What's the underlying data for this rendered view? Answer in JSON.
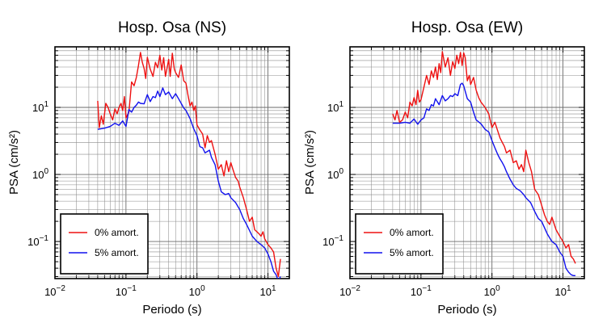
{
  "chart_data": [
    {
      "type": "line",
      "title": "Hosp. Osa (NS)",
      "xlabel": "Periodo (s)",
      "ylabel": "PSA (cm/s²)",
      "xscale": "log",
      "yscale": "log",
      "xlim": [
        0.01,
        20
      ],
      "ylim": [
        0.028,
        80
      ],
      "grid": true,
      "legend": "bottom-left",
      "x_ticks": [
        {
          "value": 0.01,
          "base": "10",
          "exp": "−2"
        },
        {
          "value": 0.1,
          "base": "10",
          "exp": "−1"
        },
        {
          "value": 1,
          "base": "10",
          "exp": "0"
        },
        {
          "value": 10,
          "base": "10",
          "exp": "1"
        }
      ],
      "y_ticks": [
        {
          "value": 0.1,
          "base": "10",
          "exp": "−1"
        },
        {
          "value": 1,
          "base": "10",
          "exp": "0"
        },
        {
          "value": 10,
          "base": "10",
          "exp": "1"
        }
      ],
      "series": [
        {
          "name": "0% amort.",
          "color": "#ee1111",
          "x": [
            0.04,
            0.042,
            0.045,
            0.048,
            0.052,
            0.056,
            0.06,
            0.065,
            0.07,
            0.075,
            0.08,
            0.085,
            0.09,
            0.095,
            0.1,
            0.11,
            0.12,
            0.13,
            0.14,
            0.15,
            0.16,
            0.17,
            0.18,
            0.19,
            0.2,
            0.22,
            0.24,
            0.26,
            0.28,
            0.3,
            0.32,
            0.34,
            0.36,
            0.38,
            0.4,
            0.42,
            0.45,
            0.48,
            0.5,
            0.55,
            0.6,
            0.65,
            0.7,
            0.75,
            0.8,
            0.85,
            0.9,
            0.95,
            1.0,
            1.1,
            1.2,
            1.3,
            1.4,
            1.5,
            1.6,
            1.8,
            2.0,
            2.2,
            2.4,
            2.6,
            2.8,
            3.0,
            3.2,
            3.5,
            3.8,
            4.0,
            4.5,
            5.0,
            5.5,
            6.0,
            6.5,
            7.0,
            7.5,
            8.0,
            8.5,
            9.0,
            10.0,
            11.0,
            12.0,
            13.0,
            14.0,
            15.0
          ],
          "y": [
            12.5,
            5.0,
            7.5,
            5.6,
            11.5,
            10.0,
            8.0,
            6.5,
            9.5,
            8.0,
            10.0,
            11.5,
            9.0,
            14.5,
            7.0,
            8.5,
            24,
            21,
            28,
            42,
            66,
            47,
            38,
            27,
            56,
            37,
            29,
            47,
            39,
            60,
            36,
            55,
            29,
            39,
            52,
            29,
            64,
            37,
            33,
            28,
            43,
            25,
            23,
            15,
            10.5,
            12,
            9.0,
            10.5,
            5.5,
            4.6,
            4.0,
            2.5,
            3.8,
            3.0,
            3.2,
            2.0,
            1.2,
            1.4,
            0.95,
            1.6,
            1.1,
            1.5,
            1.2,
            0.9,
            0.8,
            0.65,
            0.45,
            0.3,
            0.2,
            0.23,
            0.15,
            0.14,
            0.13,
            0.12,
            0.14,
            0.11,
            0.09,
            0.08,
            0.07,
            0.04,
            0.03,
            0.055
          ]
        },
        {
          "name": "5% amort.",
          "color": "#1111ee",
          "x": [
            0.04,
            0.05,
            0.06,
            0.07,
            0.08,
            0.09,
            0.1,
            0.11,
            0.12,
            0.13,
            0.14,
            0.15,
            0.16,
            0.18,
            0.2,
            0.22,
            0.24,
            0.26,
            0.28,
            0.3,
            0.33,
            0.36,
            0.4,
            0.45,
            0.5,
            0.55,
            0.6,
            0.65,
            0.7,
            0.8,
            0.9,
            1.0,
            1.1,
            1.2,
            1.3,
            1.4,
            1.5,
            1.6,
            1.8,
            2.0,
            2.2,
            2.5,
            2.8,
            3.0,
            3.5,
            4.0,
            4.5,
            5.0,
            6.0,
            7.0,
            8.0,
            9.0,
            10.0,
            11.0,
            12.0,
            13.0,
            14.0,
            15.0
          ],
          "y": [
            4.7,
            4.9,
            5.2,
            5.8,
            5.4,
            6.3,
            5.2,
            9.3,
            8.5,
            10.0,
            10.8,
            12.0,
            11.5,
            11.3,
            15.5,
            12.2,
            14.5,
            14.0,
            17.5,
            14.5,
            19.5,
            15.5,
            17.0,
            13.5,
            16.0,
            13.5,
            11.5,
            9.8,
            9.0,
            6.8,
            4.8,
            3.8,
            2.6,
            2.5,
            2.1,
            2.2,
            2.3,
            1.8,
            1.4,
            0.8,
            0.55,
            0.5,
            0.52,
            0.45,
            0.38,
            0.3,
            0.22,
            0.18,
            0.12,
            0.1,
            0.09,
            0.08,
            0.065,
            0.05,
            0.036,
            0.032,
            0.026,
            0.03
          ]
        }
      ]
    },
    {
      "type": "line",
      "title": "Hosp. Osa (EW)",
      "xlabel": "Periodo (s)",
      "ylabel": "PSA (cm/s²)",
      "xscale": "log",
      "yscale": "log",
      "xlim": [
        0.01,
        20
      ],
      "ylim": [
        0.028,
        80
      ],
      "grid": true,
      "legend": "bottom-left",
      "x_ticks": [
        {
          "value": 0.01,
          "base": "10",
          "exp": "−2"
        },
        {
          "value": 0.1,
          "base": "10",
          "exp": "−1"
        },
        {
          "value": 1,
          "base": "10",
          "exp": "0"
        },
        {
          "value": 10,
          "base": "10",
          "exp": "1"
        }
      ],
      "y_ticks": [
        {
          "value": 0.1,
          "base": "10",
          "exp": "−1"
        },
        {
          "value": 1,
          "base": "10",
          "exp": "0"
        },
        {
          "value": 10,
          "base": "10",
          "exp": "1"
        }
      ],
      "series": [
        {
          "name": "0% amort.",
          "color": "#ee1111",
          "x": [
            0.04,
            0.043,
            0.046,
            0.05,
            0.055,
            0.06,
            0.065,
            0.07,
            0.075,
            0.08,
            0.085,
            0.09,
            0.095,
            0.1,
            0.11,
            0.12,
            0.13,
            0.14,
            0.15,
            0.16,
            0.17,
            0.18,
            0.19,
            0.2,
            0.22,
            0.24,
            0.26,
            0.28,
            0.3,
            0.32,
            0.34,
            0.36,
            0.38,
            0.4,
            0.42,
            0.45,
            0.48,
            0.5,
            0.55,
            0.6,
            0.65,
            0.7,
            0.8,
            0.9,
            1.0,
            1.1,
            1.2,
            1.3,
            1.4,
            1.5,
            1.6,
            1.8,
            2.0,
            2.2,
            2.4,
            2.6,
            2.8,
            3.0,
            3.3,
            3.6,
            4.0,
            4.5,
            5.0,
            5.5,
            6.0,
            6.5,
            7.0,
            8.0,
            9.0,
            10.0,
            11.0,
            12.0,
            13.0,
            14.0,
            15.0
          ],
          "y": [
            8.0,
            6.5,
            9.0,
            6.0,
            6.5,
            8.5,
            7.0,
            12.0,
            10.5,
            14.0,
            11.0,
            18.0,
            12.0,
            13.0,
            20,
            30,
            22,
            35,
            28,
            40,
            26,
            45,
            33,
            68,
            40,
            55,
            30,
            48,
            38,
            60,
            45,
            66,
            42,
            65,
            55,
            25,
            30,
            22,
            28,
            18,
            14,
            12,
            10,
            8.0,
            5.0,
            6.0,
            4.5,
            3.5,
            3.0,
            2.6,
            2.1,
            2.3,
            1.5,
            1.6,
            1.2,
            1.4,
            1.1,
            2.3,
            1.5,
            1.1,
            0.6,
            0.5,
            0.35,
            0.25,
            0.2,
            0.18,
            0.23,
            0.15,
            0.12,
            0.1,
            0.08,
            0.09,
            0.06,
            0.055,
            0.047
          ]
        },
        {
          "name": "5% amort.",
          "color": "#1111ee",
          "x": [
            0.04,
            0.05,
            0.06,
            0.07,
            0.08,
            0.09,
            0.1,
            0.11,
            0.12,
            0.13,
            0.14,
            0.15,
            0.16,
            0.18,
            0.2,
            0.22,
            0.24,
            0.26,
            0.28,
            0.3,
            0.33,
            0.36,
            0.38,
            0.4,
            0.45,
            0.5,
            0.55,
            0.6,
            0.7,
            0.8,
            0.9,
            1.0,
            1.1,
            1.2,
            1.3,
            1.4,
            1.5,
            1.6,
            1.8,
            2.0,
            2.2,
            2.5,
            2.8,
            3.0,
            3.5,
            4.0,
            4.5,
            5.0,
            6.0,
            7.0,
            8.0,
            9.0,
            10.0,
            11.0,
            12.0,
            13.0,
            14.0,
            15.0
          ],
          "y": [
            5.8,
            5.8,
            6.0,
            5.8,
            6.7,
            5.6,
            6.5,
            7.0,
            9.5,
            9.0,
            11.0,
            10.5,
            13.5,
            11.0,
            15.0,
            12.5,
            13.5,
            15.0,
            14.5,
            16.0,
            15.0,
            22.0,
            23.0,
            21.0,
            13.5,
            12.0,
            8.5,
            6.5,
            5.7,
            4.7,
            4.3,
            3.2,
            2.5,
            2.0,
            1.7,
            1.5,
            1.3,
            1.1,
            0.85,
            0.7,
            0.62,
            0.57,
            0.5,
            0.45,
            0.38,
            0.28,
            0.22,
            0.2,
            0.13,
            0.1,
            0.09,
            0.07,
            0.06,
            0.04,
            0.035,
            0.032,
            0.031,
            0.031
          ]
        }
      ]
    }
  ]
}
